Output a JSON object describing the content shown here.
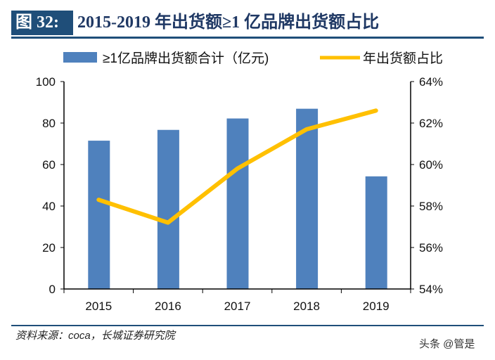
{
  "header": {
    "figure_label": "图 32:",
    "title": "2015-2019 年出货额≥1 亿品牌出货额占比"
  },
  "chart_data": {
    "type": "bar+line",
    "categories": [
      "2015",
      "2016",
      "2017",
      "2018",
      "2019"
    ],
    "series": [
      {
        "name": "≥1亿品牌出货额合计（亿元)",
        "type": "bar",
        "axis": "left",
        "color": "#4f81bd",
        "values": [
          71.5,
          76.7,
          82.2,
          86.9,
          54.3
        ]
      },
      {
        "name": "年出货额占比",
        "type": "line",
        "axis": "right",
        "color": "#ffc000",
        "values": [
          58.3,
          57.2,
          59.8,
          61.7,
          62.6
        ]
      }
    ],
    "left_axis": {
      "ylim": [
        0,
        100
      ],
      "ticks": [
        "0",
        "20",
        "40",
        "60",
        "80",
        "100"
      ]
    },
    "right_axis": {
      "ylim": [
        54,
        64
      ],
      "ticks": [
        "54%",
        "56%",
        "58%",
        "60%",
        "62%",
        "64%"
      ]
    },
    "legend": "top",
    "grid": false
  },
  "footer": {
    "source": "资料来源：coca，长城证券研究院",
    "watermark": "头条 @管是"
  }
}
